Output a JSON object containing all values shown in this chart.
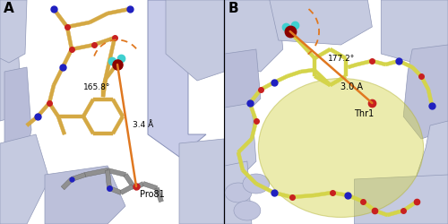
{
  "figure_width": 5.0,
  "figure_height": 2.5,
  "dpi": 100,
  "panel_A": {
    "label": "A",
    "label_fontsize": 11,
    "label_fontweight": "bold",
    "annotation_angle": "165.8°",
    "annotation_distance": "3.4 Å",
    "annotation_residue": "Pro81",
    "ligand_color": "#d4a843",
    "atom_colors": {
      "N": "#2020c0",
      "O": "#c82020",
      "F": "#40d0d0",
      "Br": "#8b0000"
    },
    "distance_line_color": "#e07820"
  },
  "panel_B": {
    "label": "B",
    "label_fontsize": 11,
    "label_fontweight": "bold",
    "annotation_angle": "177.2°",
    "annotation_distance": "3.0 A",
    "annotation_residue": "Thr1",
    "ligand_color": "#d4d44a",
    "atom_colors": {
      "N": "#2020c0",
      "O": "#c82020",
      "F": "#40d0d0",
      "Br": "#8b0000"
    },
    "distance_line_color": "#e07820",
    "surface_color": "#d4d44a"
  },
  "bg_color_A": "#dce0ee",
  "bg_color_B": "#d0d4e8",
  "protein_ribbon_color": "#c5cae0",
  "protein_ribbon_edge": "#9098b8",
  "divider_color": "#000000",
  "divider_lw": 0.8
}
